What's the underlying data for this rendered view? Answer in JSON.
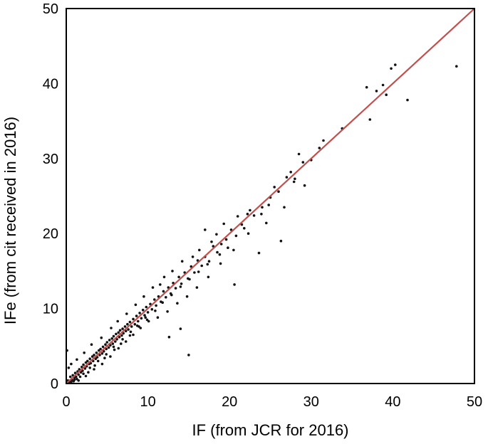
{
  "chart_data": {
    "type": "scatter",
    "xlabel": "IF (from JCR for 2016)",
    "ylabel": "IFe (from cit received in 2016)",
    "xlim": [
      0,
      50
    ],
    "ylim": [
      0,
      50
    ],
    "x_ticks": [
      "0",
      "10",
      "20",
      "30",
      "40",
      "50"
    ],
    "y_ticks": [
      "0",
      "10",
      "20",
      "30",
      "40",
      "50"
    ],
    "grid": false,
    "colors": {
      "points": "#111111",
      "reference_line": "#c0504d",
      "axes": "#000000"
    },
    "reference_line": {
      "name": "",
      "from": [
        0,
        0
      ],
      "to": [
        50,
        50
      ]
    },
    "series": [
      {
        "points": [
          [
            0.2,
            0.4
          ],
          [
            0.4,
            0.3
          ],
          [
            0.5,
            0.9
          ],
          [
            0.7,
            0.5
          ],
          [
            0.8,
            1.1
          ],
          [
            1.0,
            0.8
          ],
          [
            1.1,
            1.4
          ],
          [
            1.2,
            0.9
          ],
          [
            1.4,
            1.6
          ],
          [
            1.5,
            1.2
          ],
          [
            1.6,
            1.9
          ],
          [
            1.8,
            1.5
          ],
          [
            1.9,
            2.2
          ],
          [
            2.0,
            1.7
          ],
          [
            2.1,
            2.5
          ],
          [
            2.3,
            2.0
          ],
          [
            2.4,
            2.8
          ],
          [
            2.5,
            2.3
          ],
          [
            2.6,
            3.0
          ],
          [
            2.8,
            2.6
          ],
          [
            2.9,
            3.3
          ],
          [
            3.0,
            2.7
          ],
          [
            3.2,
            3.6
          ],
          [
            3.3,
            3.0
          ],
          [
            3.4,
            3.8
          ],
          [
            3.6,
            3.3
          ],
          [
            3.7,
            4.1
          ],
          [
            3.8,
            3.5
          ],
          [
            4.0,
            4.4
          ],
          [
            4.1,
            3.8
          ],
          [
            4.2,
            4.6
          ],
          [
            4.4,
            4.0
          ],
          [
            4.5,
            4.9
          ],
          [
            4.6,
            4.3
          ],
          [
            4.8,
            5.2
          ],
          [
            4.9,
            4.6
          ],
          [
            5.0,
            5.5
          ],
          [
            5.2,
            4.8
          ],
          [
            5.3,
            5.8
          ],
          [
            5.4,
            5.1
          ],
          [
            5.6,
            6.0
          ],
          [
            5.7,
            5.3
          ],
          [
            5.8,
            6.3
          ],
          [
            6.0,
            5.6
          ],
          [
            6.1,
            6.6
          ],
          [
            6.2,
            5.9
          ],
          [
            6.4,
            6.8
          ],
          [
            6.5,
            6.2
          ],
          [
            6.6,
            7.1
          ],
          [
            6.8,
            6.4
          ],
          [
            6.9,
            7.3
          ],
          [
            7.0,
            6.7
          ],
          [
            7.2,
            7.6
          ],
          [
            7.3,
            7.0
          ],
          [
            7.5,
            7.9
          ],
          [
            7.6,
            7.2
          ],
          [
            7.8,
            8.2
          ],
          [
            8.0,
            7.6
          ],
          [
            8.2,
            8.6
          ],
          [
            8.4,
            7.9
          ],
          [
            8.6,
            9.0
          ],
          [
            8.8,
            8.3
          ],
          [
            9.0,
            9.4
          ],
          [
            9.2,
            8.7
          ],
          [
            9.4,
            9.8
          ],
          [
            9.6,
            9.1
          ],
          [
            9.8,
            10.2
          ],
          [
            10.0,
            9.5
          ],
          [
            10.3,
            10.6
          ],
          [
            10.5,
            9.9
          ],
          [
            10.8,
            11.2
          ],
          [
            11.0,
            10.4
          ],
          [
            11.3,
            11.6
          ],
          [
            11.6,
            10.9
          ],
          [
            11.9,
            12.3
          ],
          [
            12.2,
            11.5
          ],
          [
            12.5,
            12.8
          ],
          [
            12.8,
            12.0
          ],
          [
            13.1,
            13.4
          ],
          [
            13.4,
            12.7
          ],
          [
            13.8,
            14.2
          ],
          [
            14.1,
            13.3
          ],
          [
            14.5,
            14.8
          ],
          [
            14.9,
            14.0
          ],
          [
            15.3,
            15.6
          ],
          [
            15.7,
            14.8
          ],
          [
            16.1,
            16.4
          ],
          [
            16.6,
            15.7
          ],
          [
            17.0,
            16.9
          ],
          [
            17.5,
            16.3
          ],
          [
            18.0,
            18.3
          ],
          [
            18.5,
            17.5
          ],
          [
            19.0,
            18.6
          ],
          [
            19.6,
            19.2
          ],
          [
            20.2,
            20.5
          ],
          [
            20.8,
            19.7
          ],
          [
            21.5,
            21.2
          ],
          [
            22.2,
            22.6
          ],
          [
            23.0,
            22.4
          ],
          [
            24.0,
            23.5
          ],
          [
            25.0,
            24.8
          ],
          [
            26.0,
            25.6
          ],
          [
            27.0,
            27.5
          ],
          [
            28.0,
            27.3
          ],
          [
            29.0,
            29.5
          ],
          [
            30.0,
            29.8
          ],
          [
            31.0,
            31.4
          ],
          [
            33.8,
            34.0
          ],
          [
            36.8,
            39.5
          ],
          [
            37.2,
            35.2
          ],
          [
            38.0,
            39.0
          ],
          [
            38.8,
            39.8
          ],
          [
            39.2,
            38.5
          ],
          [
            39.8,
            42.0
          ],
          [
            40.3,
            42.5
          ],
          [
            41.8,
            37.8
          ],
          [
            47.8,
            42.3
          ],
          [
            15.0,
            3.8
          ],
          [
            20.6,
            13.2
          ],
          [
            23.6,
            17.4
          ],
          [
            26.3,
            19.0
          ],
          [
            12.6,
            6.2
          ],
          [
            14.0,
            7.3
          ],
          [
            17.0,
            20.5
          ],
          [
            18.4,
            19.9
          ],
          [
            0.1,
            4.4
          ],
          [
            0.3,
            2.1
          ],
          [
            0.6,
            2.6
          ],
          [
            1.3,
            3.2
          ],
          [
            2.2,
            4.1
          ],
          [
            3.1,
            5.2
          ],
          [
            4.3,
            6.1
          ],
          [
            5.5,
            7.4
          ],
          [
            6.3,
            8.3
          ],
          [
            7.4,
            9.3
          ],
          [
            8.5,
            10.5
          ],
          [
            9.5,
            11.6
          ],
          [
            10.6,
            12.8
          ],
          [
            11.5,
            13.2
          ],
          [
            12.0,
            14.2
          ],
          [
            13.0,
            15.0
          ],
          [
            14.2,
            16.3
          ],
          [
            15.5,
            16.9
          ],
          [
            16.3,
            17.8
          ],
          [
            17.8,
            18.9
          ],
          [
            19.3,
            21.3
          ],
          [
            21.0,
            22.3
          ],
          [
            22.5,
            23.1
          ],
          [
            25.5,
            26.2
          ],
          [
            27.5,
            28.2
          ],
          [
            28.5,
            30.6
          ],
          [
            31.5,
            32.4
          ],
          [
            1.5,
            0.4
          ],
          [
            2.4,
            1.0
          ],
          [
            3.4,
            1.9
          ],
          [
            4.4,
            2.6
          ],
          [
            5.4,
            3.6
          ],
          [
            6.4,
            4.7
          ],
          [
            7.3,
            5.6
          ],
          [
            8.2,
            6.5
          ],
          [
            9.1,
            7.4
          ],
          [
            10.1,
            8.3
          ],
          [
            11.2,
            8.8
          ],
          [
            12.4,
            9.6
          ],
          [
            13.6,
            10.7
          ],
          [
            14.8,
            11.6
          ],
          [
            16.0,
            12.8
          ],
          [
            17.4,
            14.2
          ],
          [
            18.9,
            16.0
          ],
          [
            20.5,
            17.8
          ],
          [
            22.3,
            20.0
          ],
          [
            24.5,
            21.4
          ],
          [
            26.7,
            23.5
          ],
          [
            29.2,
            26.4
          ],
          [
            0.9,
            0.3
          ],
          [
            1.7,
            0.9
          ],
          [
            2.7,
            1.5
          ],
          [
            3.5,
            2.4
          ],
          [
            4.7,
            3.4
          ],
          [
            5.9,
            4.5
          ],
          [
            6.7,
            5.3
          ],
          [
            7.8,
            6.4
          ],
          [
            8.9,
            7.6
          ],
          [
            9.9,
            8.5
          ],
          [
            0.3,
            0.1
          ],
          [
            0.6,
            0.2
          ],
          [
            1.0,
            0.5
          ],
          [
            1.3,
            0.6
          ],
          [
            2.1,
            1.3
          ],
          [
            2.9,
            2.1
          ],
          [
            3.9,
            3.0
          ],
          [
            4.9,
            3.9
          ],
          [
            5.8,
            4.9
          ],
          [
            6.9,
            5.9
          ],
          [
            7.9,
            6.9
          ],
          [
            8.7,
            7.7
          ],
          [
            9.7,
            8.8
          ],
          [
            10.9,
            9.7
          ],
          [
            11.8,
            10.8
          ],
          [
            12.9,
            11.8
          ],
          [
            14.0,
            12.9
          ],
          [
            15.1,
            13.9
          ],
          [
            16.2,
            14.9
          ],
          [
            17.3,
            15.9
          ],
          [
            18.8,
            17.2
          ],
          [
            19.8,
            18.1
          ],
          [
            21.8,
            20.7
          ],
          [
            23.9,
            22.6
          ],
          [
            24.8,
            23.8
          ],
          [
            27.9,
            26.9
          ]
        ]
      }
    ]
  }
}
